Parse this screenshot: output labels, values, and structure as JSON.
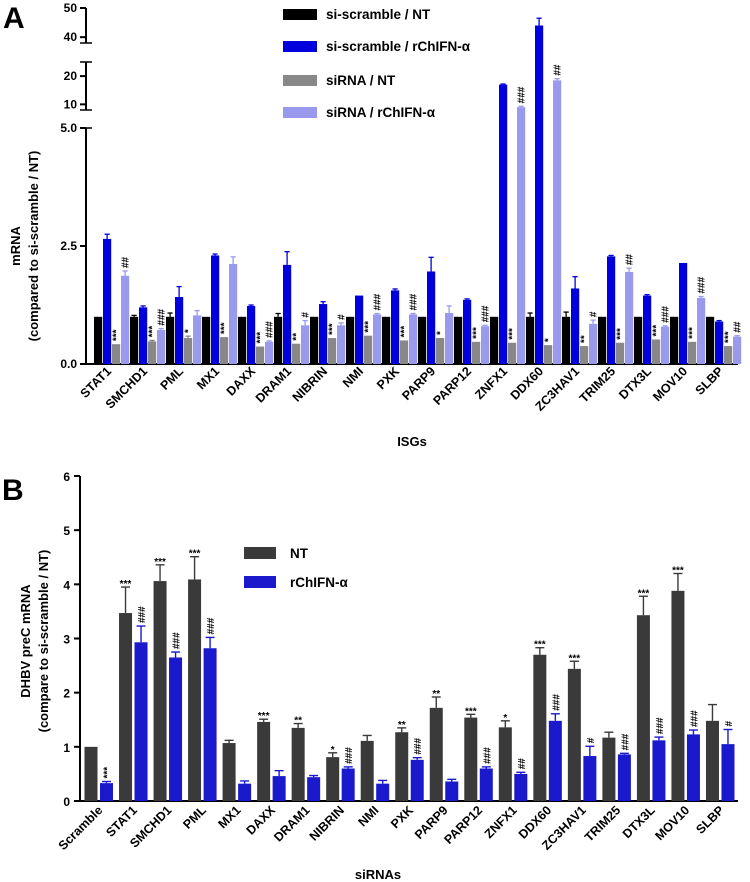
{
  "chart_data": [
    {
      "panel": "A",
      "type": "bar",
      "title": "",
      "xlabel": "ISGs",
      "ylabel_line1": "mRNA",
      "ylabel_line2": "(compared to si-scramble / NT)",
      "ylim_segments": [
        [
          0,
          5.0
        ],
        [
          8,
          25
        ],
        [
          38,
          50
        ]
      ],
      "yticks_bottom": [
        "0.0",
        "2.5",
        "5.0"
      ],
      "yticks_middle": [
        "10",
        "20"
      ],
      "yticks_top": [
        "40",
        "50"
      ],
      "categories": [
        "STAT1",
        "SMCHD1",
        "PML",
        "MX1",
        "DAXX",
        "DRAM1",
        "NIBRIN",
        "NMI",
        "PXK",
        "PARP9",
        "PARP12",
        "ZNFX1",
        "DDX60",
        "ZC3HAV1",
        "TRIM25",
        "DTX3L",
        "MOV10",
        "SLBP"
      ],
      "series": [
        {
          "name": "si-scramble / NT",
          "color": "#000000",
          "values": [
            1,
            1,
            1,
            1,
            1,
            1,
            1,
            1,
            1,
            1,
            1,
            1,
            1,
            1,
            1,
            1,
            1,
            1
          ],
          "errors": [
            0,
            0.03,
            0.08,
            0,
            0,
            0.07,
            0,
            0,
            0,
            0,
            0,
            0,
            0.08,
            0.1,
            0,
            0,
            0,
            0
          ]
        },
        {
          "name": "si-scramble / rChIFN-α",
          "color": "#0000dd",
          "values": [
            2.65,
            1.2,
            1.42,
            2.3,
            1.23,
            2.1,
            1.27,
            1.45,
            1.56,
            1.96,
            1.36,
            17,
            44,
            1.6,
            2.28,
            1.45,
            2.14,
            0.9
          ],
          "errors": [
            0.1,
            0.03,
            0.22,
            0.03,
            0.02,
            0.28,
            0.05,
            0,
            0.03,
            0.3,
            0.02,
            0.2,
            2.5,
            0.25,
            0.02,
            0.02,
            0,
            0.02
          ],
          "marks": [
            "",
            "",
            "",
            "",
            "",
            "",
            "",
            "",
            "",
            "",
            "",
            "",
            "",
            "",
            "",
            "",
            "",
            ""
          ]
        },
        {
          "name": "siRNA / NT",
          "color": "#888888",
          "values": [
            0.42,
            0.48,
            0.55,
            0.57,
            0.37,
            0.43,
            0.55,
            0.6,
            0.5,
            0.55,
            0.47,
            0.45,
            0.4,
            0.38,
            0.45,
            0.52,
            0.47,
            0.38
          ],
          "errors": [
            0,
            0.02,
            0.04,
            0,
            0,
            0,
            0,
            0,
            0,
            0,
            0,
            0,
            0,
            0,
            0,
            0,
            0,
            0
          ],
          "marks": [
            "***",
            "***",
            "*",
            "***",
            "***",
            "**",
            "***",
            "***",
            "***",
            "*",
            "***",
            "***",
            "*",
            "**",
            "***",
            "***",
            "***",
            "***"
          ]
        },
        {
          "name": "siRNA / rChIFN-α",
          "color": "#9999ee",
          "values": [
            1.87,
            0.72,
            1.03,
            2.12,
            0.47,
            0.82,
            0.82,
            1.05,
            1.05,
            1.08,
            0.8,
            9,
            18.5,
            0.85,
            1.95,
            0.79,
            1.4,
            0.58
          ],
          "errors": [
            0.1,
            0.03,
            0.1,
            0.15,
            0.02,
            0.1,
            0.05,
            0.02,
            0.02,
            0.15,
            0.02,
            0.3,
            0.6,
            0.08,
            0.08,
            0.02,
            0.03,
            0.02
          ],
          "marks": [
            "##",
            "###",
            "",
            "",
            "###",
            "#",
            "#",
            "###",
            "###",
            "",
            "###",
            "###",
            "##",
            "#",
            "##",
            "###",
            "###",
            "##"
          ]
        }
      ]
    },
    {
      "panel": "B",
      "type": "bar",
      "title": "",
      "xlabel": "siRNAs",
      "ylabel_line1": "DHBV preC mRNA",
      "ylabel_line2": "(compare to si-scramble / NT)",
      "ylim": [
        0,
        6
      ],
      "yticks": [
        "0",
        "1",
        "2",
        "3",
        "4",
        "5",
        "6"
      ],
      "categories": [
        "Scramble",
        "STAT1",
        "SMCHD1",
        "PML",
        "MX1",
        "DAXX",
        "DRAM1",
        "NIBRIN",
        "NMI",
        "PXK",
        "PARP9",
        "PARP12",
        "ZNFX1",
        "DDX60",
        "ZC3HAV1",
        "TRIM25",
        "DTX3L",
        "MOV10",
        "SLBP"
      ],
      "series": [
        {
          "name": "NT",
          "color": "#3a3a3a",
          "values": [
            1,
            3.47,
            4.06,
            4.09,
            1.07,
            1.46,
            1.35,
            0.81,
            1.11,
            1.27,
            1.72,
            1.54,
            1.36,
            2.7,
            2.44,
            1.17,
            3.43,
            3.88,
            1.48
          ],
          "errors": [
            0,
            0.48,
            0.3,
            0.42,
            0.05,
            0.05,
            0.08,
            0.08,
            0.1,
            0.08,
            0.2,
            0.06,
            0.12,
            0.13,
            0.14,
            0.1,
            0.35,
            0.32,
            0.3
          ],
          "marks": [
            "",
            "***",
            "***",
            "***",
            "",
            "***",
            "**",
            "*",
            "",
            "**",
            "**",
            "***",
            "*",
            "***",
            "***",
            "",
            "***",
            "***",
            ""
          ]
        },
        {
          "name": "rChIFN-α",
          "color": "#1a1acc",
          "values": [
            0.33,
            2.93,
            2.65,
            2.82,
            0.32,
            0.46,
            0.44,
            0.6,
            0.32,
            0.76,
            0.36,
            0.6,
            0.5,
            1.48,
            0.83,
            0.86,
            1.12,
            1.23,
            1.05
          ],
          "errors": [
            0.03,
            0.3,
            0.1,
            0.2,
            0.05,
            0.1,
            0.03,
            0.03,
            0.06,
            0.04,
            0.04,
            0.03,
            0.03,
            0.13,
            0.18,
            0.02,
            0.06,
            0.08,
            0.27
          ],
          "marks": [
            "***",
            "###",
            "###",
            "###",
            "",
            "",
            "",
            "###",
            "",
            "###",
            "",
            "###",
            "##",
            "###",
            "#",
            "###",
            "###",
            "###",
            "#"
          ]
        }
      ]
    }
  ]
}
